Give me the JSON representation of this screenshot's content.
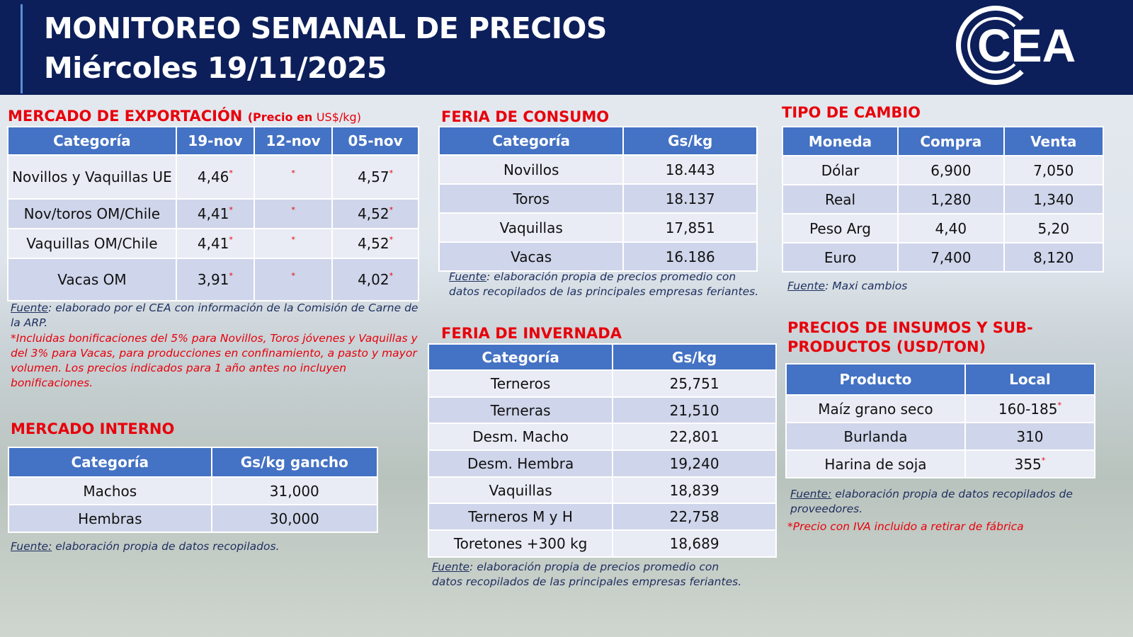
{
  "header": {
    "title": "MONITOREO SEMANAL DE PRECIOS",
    "date": "Miércoles 19/11/2025",
    "logo": "CEA"
  },
  "export": {
    "title": "MERCADO DE EXPORTACIÓN",
    "subtitle_bold": "(Precio en",
    "subtitle_unit": "US$/kg)",
    "columns": [
      "Categoría",
      "19-nov",
      "12-nov",
      "05-nov"
    ],
    "rows": [
      [
        "Novillos y Vaquillas UE",
        "4,46",
        "",
        "4,57"
      ],
      [
        "Nov/toros OM/Chile",
        "4,41",
        "",
        "4,52"
      ],
      [
        "Vaquillas OM/Chile",
        "4,41",
        "",
        "4,52"
      ],
      [
        "Vacas OM",
        "3,91",
        "",
        "4,02"
      ]
    ],
    "asterisk": "*",
    "source_label": "Fuente",
    "source_text": ": elaborado por el CEA con información de la Comisión de Carne de la ARP.",
    "footnote": "*Incluidas bonificaciones del 5% para Novillos, Toros jóvenes y Vaquillas y del 3% para Vacas, para producciones en confinamiento, a pasto y mayor volumen. Los precios indicados para 1 año antes no incluyen bonificaciones."
  },
  "internal": {
    "title": "MERCADO INTERNO",
    "columns": [
      "Categoría",
      "Gs/kg gancho"
    ],
    "rows": [
      [
        "Machos",
        "31,000"
      ],
      [
        "Hembras",
        "30,000"
      ]
    ],
    "source_label": "Fuente:",
    "source_text": " elaboración propia de datos recopilados."
  },
  "consumo": {
    "title": "FERIA DE CONSUMO",
    "columns": [
      "Categoría",
      "Gs/kg"
    ],
    "rows": [
      [
        "Novillos",
        "18.443"
      ],
      [
        "Toros",
        "18.137"
      ],
      [
        "Vaquillas",
        "17,851"
      ],
      [
        "Vacas",
        "16.186"
      ]
    ],
    "source_label": "Fuente",
    "source_text": ": elaboración propia de precios promedio con datos recopilados de las principales empresas feriantes."
  },
  "invernada": {
    "title": "FERIA DE INVERNADA",
    "columns": [
      "Categoría",
      "Gs/kg"
    ],
    "rows": [
      [
        "Terneros",
        "25,751"
      ],
      [
        "Terneras",
        "21,510"
      ],
      [
        "Desm. Macho",
        "22,801"
      ],
      [
        "Desm. Hembra",
        "19,240"
      ],
      [
        "Vaquillas",
        "18,839"
      ],
      [
        "Terneros M y H",
        "22,758"
      ],
      [
        "Toretones +300 kg",
        "18,689"
      ]
    ],
    "source_label": "Fuente",
    "source_text": ": elaboración propia de precios promedio con datos recopilados de las principales empresas feriantes."
  },
  "cambio": {
    "title": "TIPO DE CAMBIO",
    "columns": [
      "Moneda",
      "Compra",
      "Venta"
    ],
    "rows": [
      [
        "Dólar",
        "6,900",
        "7,050"
      ],
      [
        "Real",
        "1,280",
        "1,340"
      ],
      [
        "Peso Arg",
        "4,40",
        "5,20"
      ],
      [
        "Euro",
        "7,400",
        "8,120"
      ]
    ],
    "source_label": "Fuente",
    "source_text": ": Maxi cambios"
  },
  "insumos": {
    "title": "PRECIOS DE INSUMOS Y SUB-PRODUCTOS (USD/TON)",
    "columns": [
      "Producto",
      "Local"
    ],
    "rows": [
      [
        "Maíz grano seco",
        "160-185",
        "*"
      ],
      [
        "Burlanda",
        "310",
        ""
      ],
      [
        "Harina de soja",
        "355",
        "*"
      ]
    ],
    "source_label": "Fuente:",
    "source_text": " elaboración propia de datos recopilados de proveedores.",
    "footnote": "*Precio con IVA incluido a retirar de fábrica"
  },
  "colors": {
    "header_bg": "#0c1f5a",
    "table_header": "#4472c4",
    "accent_red": "#e8000b"
  }
}
